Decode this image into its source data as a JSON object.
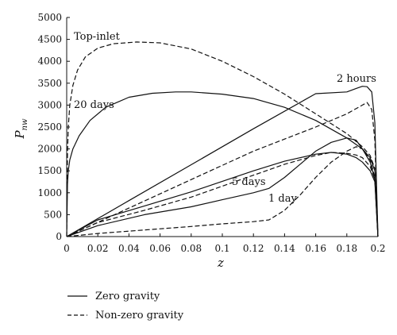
{
  "chart_data": {
    "type": "line",
    "xlabel": "z",
    "ylabel": "P",
    "ylabel_sub": "nw",
    "xlim": [
      0,
      0.2
    ],
    "ylim": [
      0,
      5000
    ],
    "xticks": [
      "0",
      "0.02",
      "0.04",
      "0.06",
      "0.08",
      "0.1",
      "0.12",
      "0.14",
      "0.16",
      "0.18",
      "0.2"
    ],
    "yticks": [
      "0",
      "500",
      "1000",
      "1500",
      "2000",
      "2500",
      "3000",
      "3500",
      "4000",
      "4500",
      "5000"
    ],
    "grid": false,
    "legend_position": "bottom-left",
    "legend": [
      {
        "label": "Zero gravity",
        "style": "solid"
      },
      {
        "label": "Non-zero gravity",
        "style": "dashed"
      }
    ],
    "annotations": [
      "Top-inlet",
      "20 days",
      "2 hours",
      "5 days",
      "1 day"
    ],
    "series": [
      {
        "style": "solid",
        "x": [
          0,
          0.0005,
          0.001,
          0.002,
          0.004,
          0.008,
          0.015,
          0.025,
          0.04,
          0.055,
          0.07,
          0.08,
          0.1,
          0.12,
          0.14,
          0.16,
          0.18,
          0.19,
          0.195,
          0.198,
          0.2
        ],
        "y": [
          0,
          1200,
          1500,
          1750,
          2000,
          2300,
          2650,
          2950,
          3180,
          3270,
          3300,
          3300,
          3250,
          3150,
          2950,
          2650,
          2250,
          2000,
          1800,
          1500,
          0
        ]
      },
      {
        "style": "solid",
        "x": [
          0,
          0.04,
          0.08,
          0.12,
          0.16,
          0.18,
          0.186,
          0.19,
          0.193,
          0.196,
          0.198,
          0.2
        ],
        "y": [
          0,
          820,
          1640,
          2460,
          3260,
          3300,
          3380,
          3430,
          3420,
          3300,
          2600,
          0
        ]
      },
      {
        "style": "solid",
        "x": [
          0,
          0.02,
          0.05,
          0.08,
          0.1,
          0.12,
          0.14,
          0.16,
          0.17,
          0.18,
          0.186,
          0.19,
          0.195,
          0.198,
          0.2
        ],
        "y": [
          0,
          380,
          700,
          1020,
          1260,
          1500,
          1720,
          1880,
          1920,
          1880,
          1800,
          1700,
          1500,
          1250,
          0
        ]
      },
      {
        "style": "solid",
        "x": [
          0,
          0.02,
          0.05,
          0.08,
          0.1,
          0.12,
          0.13,
          0.14,
          0.15,
          0.16,
          0.17,
          0.18,
          0.186,
          0.19,
          0.195,
          0.198,
          0.2
        ],
        "y": [
          0,
          250,
          500,
          680,
          840,
          1000,
          1100,
          1350,
          1650,
          1950,
          2150,
          2250,
          2200,
          2000,
          1700,
          1300,
          0
        ]
      },
      {
        "style": "dashed",
        "x": [
          0,
          0.0005,
          0.001,
          0.002,
          0.004,
          0.007,
          0.012,
          0.02,
          0.03,
          0.045,
          0.06,
          0.08,
          0.1,
          0.12,
          0.14,
          0.16,
          0.18,
          0.19,
          0.195,
          0.198,
          0.2
        ],
        "y": [
          0,
          1900,
          2500,
          3000,
          3450,
          3800,
          4100,
          4300,
          4400,
          4440,
          4420,
          4280,
          4000,
          3650,
          3250,
          2800,
          2350,
          2050,
          1850,
          1550,
          0
        ]
      },
      {
        "style": "dashed",
        "x": [
          0,
          0.04,
          0.08,
          0.12,
          0.16,
          0.18,
          0.19,
          0.193,
          0.196,
          0.198,
          0.2
        ],
        "y": [
          0,
          650,
          1300,
          1950,
          2500,
          2800,
          3000,
          3060,
          2900,
          2200,
          0
        ]
      },
      {
        "style": "dashed",
        "x": [
          0,
          0.02,
          0.05,
          0.08,
          0.1,
          0.12,
          0.14,
          0.16,
          0.17,
          0.18,
          0.186,
          0.19,
          0.195,
          0.198,
          0.2
        ],
        "y": [
          0,
          320,
          600,
          900,
          1150,
          1400,
          1650,
          1850,
          1920,
          1900,
          1860,
          1800,
          1600,
          1300,
          0
        ]
      },
      {
        "style": "dashed",
        "x": [
          0,
          0.02,
          0.05,
          0.08,
          0.1,
          0.12,
          0.13,
          0.14,
          0.15,
          0.16,
          0.17,
          0.18,
          0.186,
          0.19,
          0.195,
          0.198,
          0.2
        ],
        "y": [
          0,
          70,
          150,
          230,
          290,
          340,
          380,
          600,
          950,
          1350,
          1700,
          1950,
          2050,
          2000,
          1750,
          1350,
          0
        ]
      }
    ]
  }
}
